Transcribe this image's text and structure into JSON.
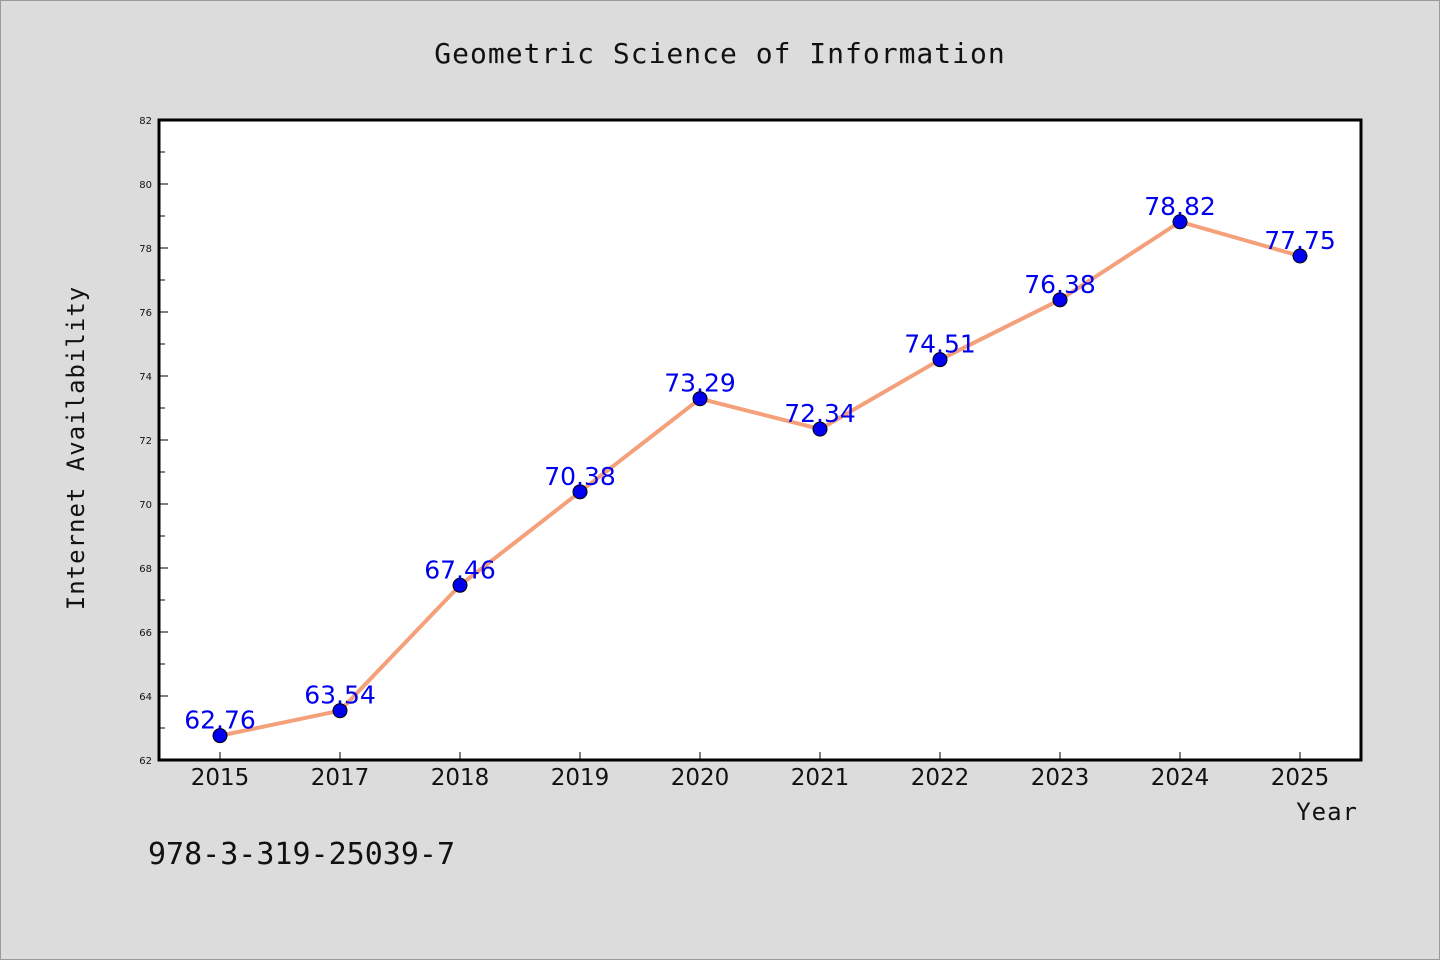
{
  "chart_data": {
    "type": "line",
    "title": "Geometric Science of Information",
    "xlabel": "Year",
    "ylabel": "Internet Availability",
    "categories": [
      "2015",
      "2017",
      "2018",
      "2019",
      "2020",
      "2021",
      "2022",
      "2023",
      "2024",
      "2025"
    ],
    "series": [
      {
        "values": [
          62.76,
          63.54,
          67.46,
          70.38,
          73.29,
          72.34,
          74.51,
          76.38,
          78.82,
          77.75
        ],
        "line_color": "#f4a07a",
        "marker_color": "#0000ee"
      }
    ],
    "data_labels": [
      "62.76",
      "63.54",
      "67.46",
      "70.38",
      "73.29",
      "72.34",
      "74.51",
      "76.38",
      "78.82",
      "77.75"
    ],
    "data_label_color": "#0000ee",
    "ylim": [
      62,
      82
    ],
    "yticks": [
      62,
      64,
      66,
      68,
      70,
      72,
      74,
      76,
      78,
      80,
      82
    ],
    "grid": false,
    "legend": "none"
  },
  "footnote": "978-3-319-25039-7"
}
